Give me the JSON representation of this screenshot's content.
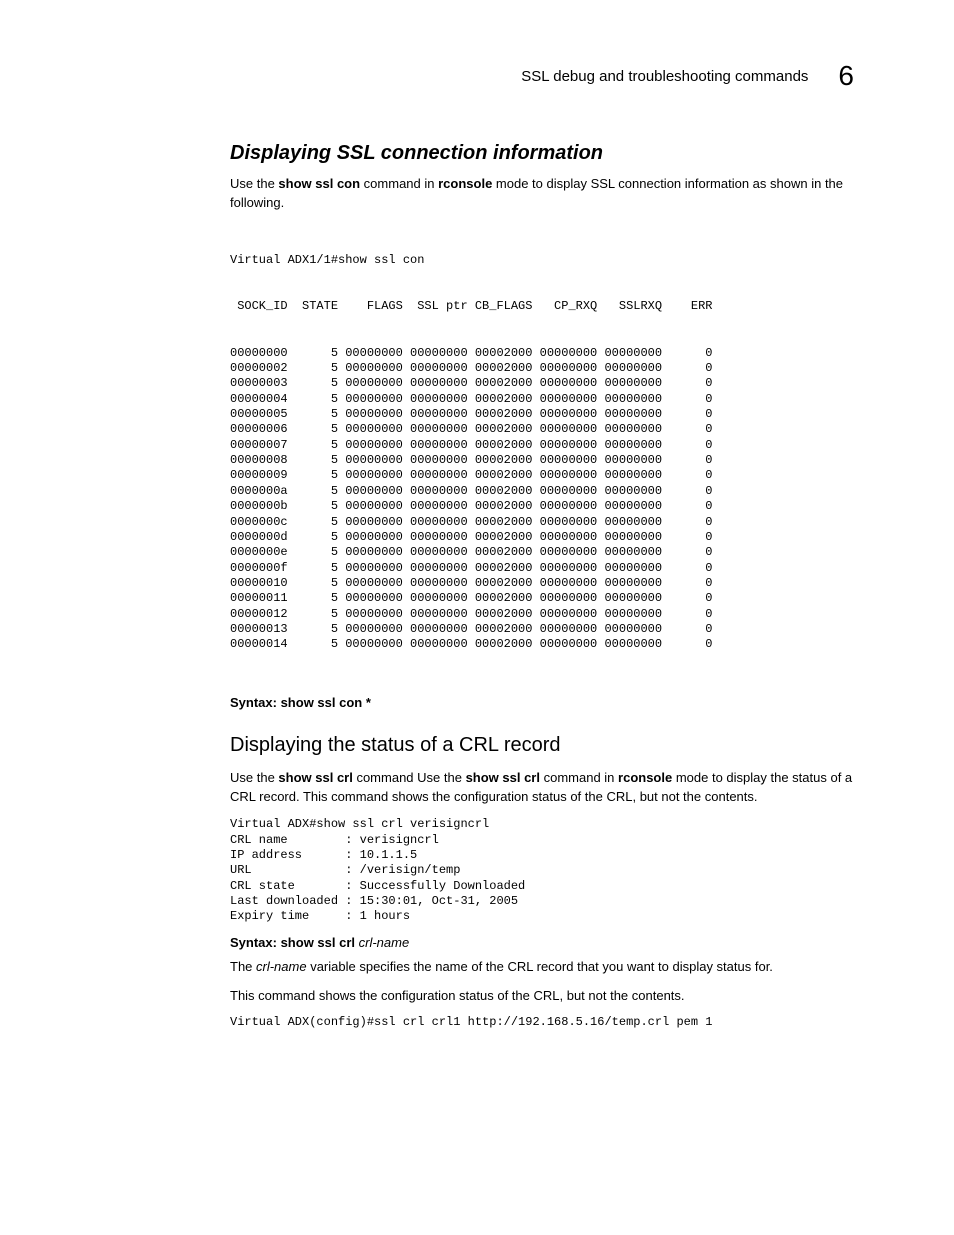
{
  "header": {
    "title": "SSL debug and troubleshooting commands",
    "chapter": "6"
  },
  "section1": {
    "heading": "Displaying SSL connection information",
    "para_lead": "Use the ",
    "cmd1": "show ssl con",
    "para_mid1": " command in ",
    "cmd2": "rconsole",
    "para_tail": " mode to display SSL connection information as shown in the following.",
    "prompt": "Virtual ADX1/1#show ssl con",
    "table": {
      "col_header": " SOCK_ID  STATE    FLAGS  SSL ptr CB_FLAGS   CP_RXQ   SSLRXQ    ERR",
      "rows": [
        {
          "sock": "00000000",
          "state": "5",
          "flags": "00000000",
          "sslptr": "00000000",
          "cbflags": "00002000",
          "cprxq": "00000000",
          "sslrxq": "00000000",
          "err": "0"
        },
        {
          "sock": "00000002",
          "state": "5",
          "flags": "00000000",
          "sslptr": "00000000",
          "cbflags": "00002000",
          "cprxq": "00000000",
          "sslrxq": "00000000",
          "err": "0"
        },
        {
          "sock": "00000003",
          "state": "5",
          "flags": "00000000",
          "sslptr": "00000000",
          "cbflags": "00002000",
          "cprxq": "00000000",
          "sslrxq": "00000000",
          "err": "0"
        },
        {
          "sock": "00000004",
          "state": "5",
          "flags": "00000000",
          "sslptr": "00000000",
          "cbflags": "00002000",
          "cprxq": "00000000",
          "sslrxq": "00000000",
          "err": "0"
        },
        {
          "sock": "00000005",
          "state": "5",
          "flags": "00000000",
          "sslptr": "00000000",
          "cbflags": "00002000",
          "cprxq": "00000000",
          "sslrxq": "00000000",
          "err": "0"
        },
        {
          "sock": "00000006",
          "state": "5",
          "flags": "00000000",
          "sslptr": "00000000",
          "cbflags": "00002000",
          "cprxq": "00000000",
          "sslrxq": "00000000",
          "err": "0"
        },
        {
          "sock": "00000007",
          "state": "5",
          "flags": "00000000",
          "sslptr": "00000000",
          "cbflags": "00002000",
          "cprxq": "00000000",
          "sslrxq": "00000000",
          "err": "0"
        },
        {
          "sock": "00000008",
          "state": "5",
          "flags": "00000000",
          "sslptr": "00000000",
          "cbflags": "00002000",
          "cprxq": "00000000",
          "sslrxq": "00000000",
          "err": "0"
        },
        {
          "sock": "00000009",
          "state": "5",
          "flags": "00000000",
          "sslptr": "00000000",
          "cbflags": "00002000",
          "cprxq": "00000000",
          "sslrxq": "00000000",
          "err": "0"
        },
        {
          "sock": "0000000a",
          "state": "5",
          "flags": "00000000",
          "sslptr": "00000000",
          "cbflags": "00002000",
          "cprxq": "00000000",
          "sslrxq": "00000000",
          "err": "0"
        },
        {
          "sock": "0000000b",
          "state": "5",
          "flags": "00000000",
          "sslptr": "00000000",
          "cbflags": "00002000",
          "cprxq": "00000000",
          "sslrxq": "00000000",
          "err": "0"
        },
        {
          "sock": "0000000c",
          "state": "5",
          "flags": "00000000",
          "sslptr": "00000000",
          "cbflags": "00002000",
          "cprxq": "00000000",
          "sslrxq": "00000000",
          "err": "0"
        },
        {
          "sock": "0000000d",
          "state": "5",
          "flags": "00000000",
          "sslptr": "00000000",
          "cbflags": "00002000",
          "cprxq": "00000000",
          "sslrxq": "00000000",
          "err": "0"
        },
        {
          "sock": "0000000e",
          "state": "5",
          "flags": "00000000",
          "sslptr": "00000000",
          "cbflags": "00002000",
          "cprxq": "00000000",
          "sslrxq": "00000000",
          "err": "0"
        },
        {
          "sock": "0000000f",
          "state": "5",
          "flags": "00000000",
          "sslptr": "00000000",
          "cbflags": "00002000",
          "cprxq": "00000000",
          "sslrxq": "00000000",
          "err": "0"
        },
        {
          "sock": "00000010",
          "state": "5",
          "flags": "00000000",
          "sslptr": "00000000",
          "cbflags": "00002000",
          "cprxq": "00000000",
          "sslrxq": "00000000",
          "err": "0"
        },
        {
          "sock": "00000011",
          "state": "5",
          "flags": "00000000",
          "sslptr": "00000000",
          "cbflags": "00002000",
          "cprxq": "00000000",
          "sslrxq": "00000000",
          "err": "0"
        },
        {
          "sock": "00000012",
          "state": "5",
          "flags": "00000000",
          "sslptr": "00000000",
          "cbflags": "00002000",
          "cprxq": "00000000",
          "sslrxq": "00000000",
          "err": "0"
        },
        {
          "sock": "00000013",
          "state": "5",
          "flags": "00000000",
          "sslptr": "00000000",
          "cbflags": "00002000",
          "cprxq": "00000000",
          "sslrxq": "00000000",
          "err": "0"
        },
        {
          "sock": "00000014",
          "state": "5",
          "flags": "00000000",
          "sslptr": "00000000",
          "cbflags": "00002000",
          "cprxq": "00000000",
          "sslrxq": "00000000",
          "err": "0"
        }
      ]
    },
    "syntax_label": "Syntax:  ",
    "syntax_cmd": "show ssl con *"
  },
  "section2": {
    "heading": "Displaying the status of a CRL record",
    "para1_lead": "Use the ",
    "para1_cmd1": "show ssl crl",
    "para1_mid1": " command Use the ",
    "para1_cmd2": "show ssl crl",
    "para1_mid2": " command in ",
    "para1_cmd3": "rconsole",
    "para1_tail": " mode to display the status of a CRL record. This command shows the configuration status of the CRL, but not the contents.",
    "pre2": "Virtual ADX#show ssl crl verisigncrl\nCRL name        : verisigncrl\nIP address      : 10.1.1.5\nURL             : /verisign/temp\nCRL state       : Successfully Downloaded\nLast downloaded : 15:30:01, Oct-31, 2005\nExpiry time     : 1 hours",
    "syntax_label": "Syntax:  ",
    "syntax_cmd": "show ssl crl",
    "syntax_arg": " crl-name",
    "para2_lead": "The ",
    "para2_var": "crl-name",
    "para2_tail": " variable specifies the name of the CRL record that you want to display status for.",
    "para3": "This command shows the configuration status of the CRL, but not the contents.",
    "pre3": "Virtual ADX(config)#ssl crl crl1 http://192.168.5.16/temp.crl pem 1"
  }
}
